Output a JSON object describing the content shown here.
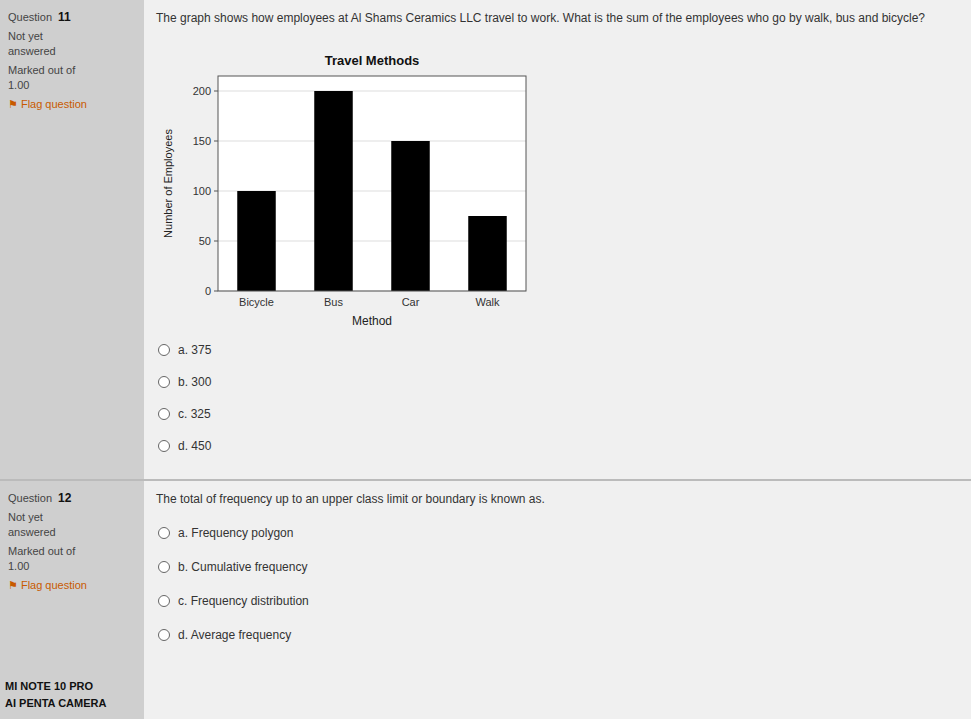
{
  "chart_data": {
    "type": "bar",
    "title": "Travel Methods",
    "categories": [
      "Bicycle",
      "Bus",
      "Car",
      "Walk"
    ],
    "values": [
      100,
      200,
      150,
      75
    ],
    "color": "#000000",
    "xlabel": "Method",
    "ylabel": "Number of Employees",
    "ylim": [
      0,
      215
    ],
    "yticks": [
      0,
      50,
      100,
      150,
      200
    ],
    "grid": true
  },
  "page": {
    "questions": [
      {
        "label": "Question",
        "number": "11",
        "status": [
          "Not yet",
          "answered"
        ],
        "marks_label": "Marked out of",
        "marks": "1.00",
        "flag": "⚑ Flag question",
        "text": "The graph shows how employees at Al Shams Ceramics LLC travel to work. What is the sum of the employees who go by walk, bus and bicycle?",
        "options": [
          "a. 375",
          "b. 300",
          "c. 325",
          "d. 450"
        ]
      },
      {
        "label": "Question",
        "number": "12",
        "status": [
          "Not yet",
          "answered"
        ],
        "marks_label": "Marked out of",
        "marks": "1.00",
        "flag": "⚑ Flag question",
        "text": "The total of frequency up to an upper class limit or boundary is known as.",
        "options": [
          "a. Frequency polygon",
          "b. Cumulative frequency",
          "c. Frequency distribution",
          "d. Average frequency"
        ]
      }
    ],
    "watermark": [
      "MI NOTE 10 PRO",
      "AI PENTA CAMERA"
    ]
  }
}
